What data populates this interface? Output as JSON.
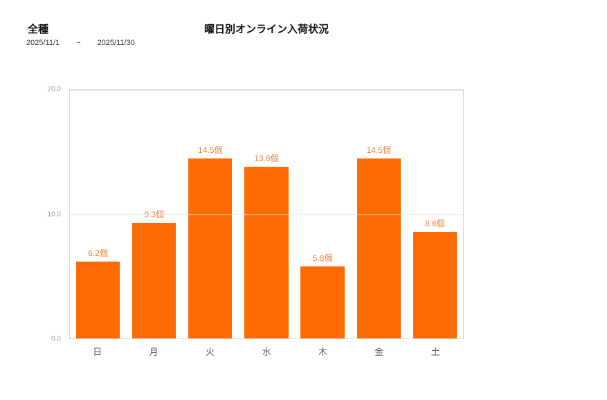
{
  "header": {
    "category_label": "全種",
    "date_from": "2025/11/1",
    "date_separator": "~",
    "date_to": "2025/11/30"
  },
  "chart_data": {
    "type": "bar",
    "title": "曜日別オンライン入荷状況",
    "categories": [
      "日",
      "月",
      "火",
      "水",
      "木",
      "金",
      "土"
    ],
    "values": [
      6.2,
      9.3,
      14.5,
      13.8,
      5.8,
      14.5,
      8.6
    ],
    "value_labels": [
      "6.2個",
      "9.3個",
      "14.5個",
      "13.8個",
      "5.8個",
      "14.5個",
      "8.6個"
    ],
    "unit": "個",
    "xlabel": "",
    "ylabel": "",
    "ylim": [
      0,
      20
    ],
    "yticks": [
      0,
      10,
      20
    ],
    "ytick_labels": [
      "0.0",
      "10.0",
      "20.0"
    ],
    "grid": true,
    "legend": "none"
  },
  "colors": {
    "bar": "#fd6b02",
    "value_label": "#ed7d31",
    "axis_tick_text": "#9b9b9b",
    "category_text": "#595959",
    "grid_line": "#e3e3e3",
    "plot_border": "#d9d9d9",
    "background": "#ffffff",
    "text": "#111111"
  }
}
